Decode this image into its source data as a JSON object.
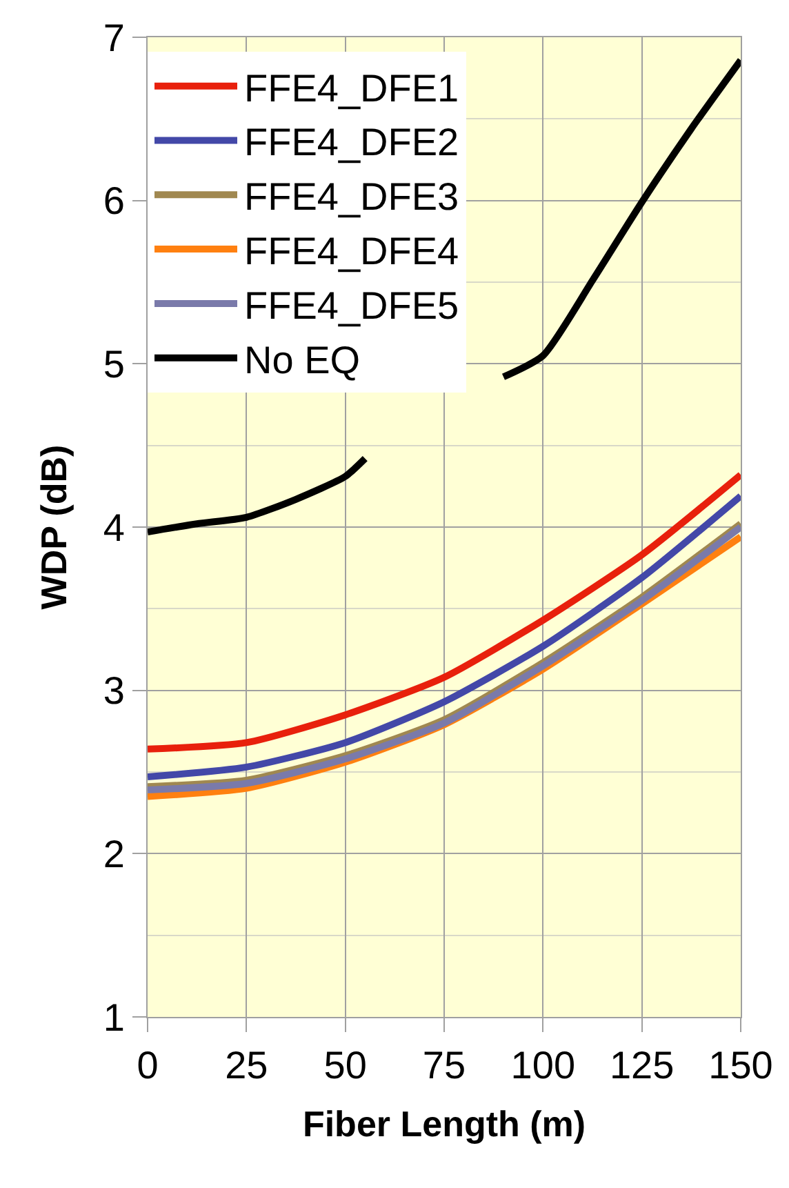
{
  "chart_data": {
    "type": "line",
    "xlabel": "Fiber Length (m)",
    "ylabel": "WDP (dB)",
    "series": [
      {
        "name": "FFE4_DFE1",
        "color": "#e8200c",
        "x": [
          0,
          25,
          50,
          75,
          100,
          125,
          150
        ],
        "values": [
          2.64,
          2.68,
          2.85,
          3.08,
          3.43,
          3.83,
          4.32
        ]
      },
      {
        "name": "FFE4_DFE2",
        "color": "#4348a8",
        "x": [
          0,
          25,
          50,
          75,
          100,
          125,
          150
        ],
        "values": [
          2.47,
          2.53,
          2.68,
          2.93,
          3.27,
          3.69,
          4.19
        ]
      },
      {
        "name": "FFE4_DFE3",
        "color": "#a08850",
        "x": [
          0,
          25,
          50,
          75,
          100,
          125,
          150
        ],
        "values": [
          2.41,
          2.45,
          2.6,
          2.82,
          3.17,
          3.57,
          4.02
        ]
      },
      {
        "name": "FFE4_DFE4",
        "color": "#ff8010",
        "x": [
          0,
          25,
          50,
          75,
          100,
          125,
          150
        ],
        "values": [
          2.35,
          2.4,
          2.56,
          2.79,
          3.13,
          3.53,
          3.94
        ]
      },
      {
        "name": "FFE4_DFE5",
        "color": "#7a7aaa",
        "x": [
          0,
          25,
          50,
          75,
          100,
          125,
          150
        ],
        "values": [
          2.39,
          2.43,
          2.58,
          2.8,
          3.15,
          3.55,
          4.0
        ]
      },
      {
        "name": "No EQ",
        "color": "#000000",
        "x": [
          0,
          12.5,
          25,
          37.5,
          50,
          55,
          72.5,
          90,
          100,
          112.5,
          125,
          137.5,
          150
        ],
        "values": [
          3.97,
          4.02,
          4.06,
          4.17,
          4.31,
          4.42,
          null,
          4.92,
          5.05,
          5.51,
          5.99,
          6.44,
          6.86
        ]
      }
    ],
    "xlim": [
      0,
      150
    ],
    "xticks": [
      0,
      25,
      50,
      75,
      100,
      125,
      150
    ],
    "ylim": [
      1,
      7
    ],
    "yticks": [
      1,
      2,
      3,
      4,
      5,
      6,
      7
    ],
    "grid": true,
    "legend": "top left",
    "line_style": "solid",
    "marker": "none"
  }
}
